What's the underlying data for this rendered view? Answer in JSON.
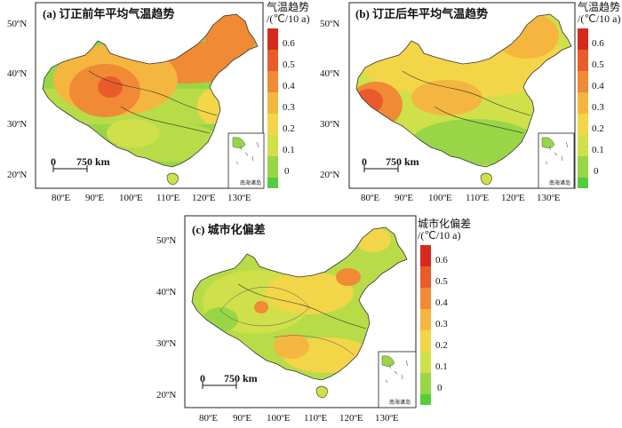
{
  "panels": [
    {
      "id": "a",
      "title": "(a) 订正前年平均气温趋势",
      "legend_title_line1": "气温趋势",
      "legend_title_line2": "/(℃/10 a)",
      "lat_labels": [
        "50ºN",
        "40ºN",
        "30ºN",
        "20ºN"
      ],
      "lon_labels": [
        "80ºE",
        "90ºE",
        "100ºE",
        "110ºE",
        "120ºE",
        "130ºE"
      ],
      "scale_zero": "0",
      "scale_label": "750 km",
      "inset_label": "南海诸岛",
      "colorbar_labels": [
        "0.6",
        "0.5",
        "0.4",
        "0.3",
        "0.2",
        "0.1",
        "0"
      ]
    },
    {
      "id": "b",
      "title": "(b) 订正后年平均气温趋势",
      "legend_title_line1": "气温趋势",
      "legend_title_line2": "/(℃/10 a)",
      "lat_labels": [
        "50ºN",
        "40ºN",
        "30ºN",
        "20ºN"
      ],
      "lon_labels": [
        "80ºE",
        "90ºE",
        "100ºE",
        "110ºE",
        "120ºE",
        "130ºE"
      ],
      "scale_zero": "0",
      "scale_label": "750 km",
      "inset_label": "南海诸岛",
      "colorbar_labels": [
        "0.6",
        "0.5",
        "0.4",
        "0.3",
        "0.2",
        "0.1",
        "0"
      ]
    },
    {
      "id": "c",
      "title": "(c) 城市化偏差",
      "legend_title_line1": "城市化偏差",
      "legend_title_line2": "/(℃/10 a)",
      "lat_labels": [
        "50ºN",
        "40ºN",
        "30ºN",
        "20ºN"
      ],
      "lon_labels": [
        "80ºE",
        "90ºE",
        "100ºE",
        "110ºE",
        "120ºE",
        "130ºE"
      ],
      "scale_zero": "0",
      "scale_label": "750 km",
      "inset_label": "南海诸岛",
      "colorbar_labels": [
        "0.6",
        "0.5",
        "0.4",
        "0.3",
        "0.2",
        "0.1",
        "0"
      ]
    }
  ],
  "colorbar_colors": [
    "#d62a1f",
    "#ea5b2b",
    "#f08a35",
    "#f5b63f",
    "#f3d548",
    "#cfe04a",
    "#98d647",
    "#55cc3d"
  ]
}
